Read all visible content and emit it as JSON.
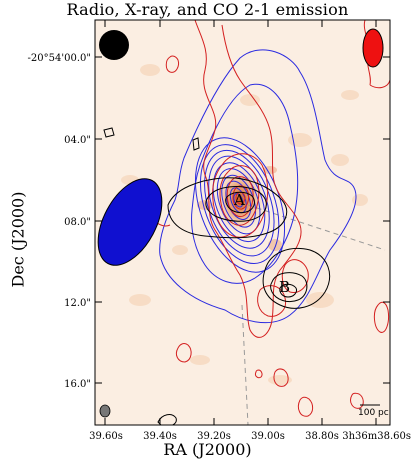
{
  "title": "Radio, X-ray, and CO 2-1 emission",
  "axes": {
    "xlabel": "RA (J2000)",
    "ylabel": "Dec (J2000)",
    "x_ticks": [
      "39.60s",
      "39.40s",
      "39.20s",
      "39.00s",
      "38.80s",
      "3h36m38.60s"
    ],
    "y_ticks": [
      "-20°54'00.0\"",
      "04.0\"",
      "08.0\"",
      "12.0\"",
      "16.0\""
    ]
  },
  "sources": {
    "a": "A",
    "b": "B"
  },
  "scalebar": {
    "label": "100 pc"
  },
  "colors": {
    "radio_contours": "#2a2ae0",
    "xray_contours": "#000000",
    "co_contours": "#d42020",
    "background": "#fbeee2",
    "beam_radio": "#1010d0",
    "beam_co": "#ee1111"
  }
}
